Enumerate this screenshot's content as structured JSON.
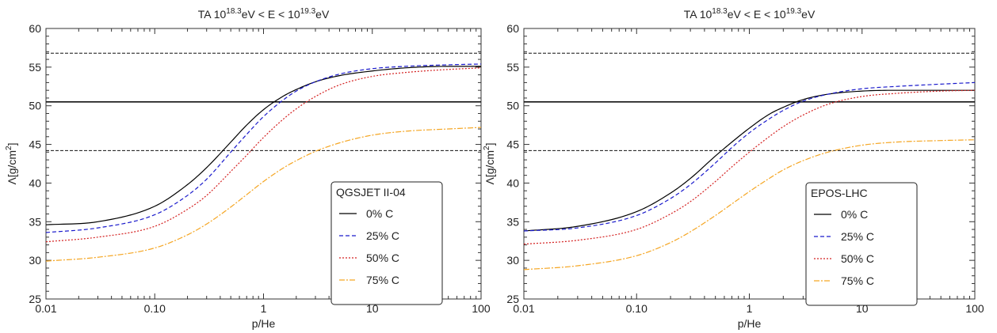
{
  "styles": {
    "0% C": {
      "color": "#000000",
      "dash": ""
    },
    "25% C": {
      "color": "#1a1acc",
      "dash": "5,3"
    },
    "50% C": {
      "color": "#d42020",
      "dash": "2,2"
    },
    "75% C": {
      "color": "#f5a623",
      "dash": "7,2,2,2"
    }
  },
  "chart_data": [
    {
      "type": "line",
      "title_text": "TA",
      "title_sup1": "18.3",
      "title_sup2": "19.3",
      "title_mid": "eV < E < 10",
      "title_end": "eV",
      "title_base": "10",
      "xlabel": "p/He",
      "ylabel_main": "Λ[g/cm",
      "ylabel_sup": "2",
      "ylabel_end": "]",
      "xscale": "log",
      "xlim": [
        0.01,
        100
      ],
      "ylim": [
        25,
        60
      ],
      "xticks": [
        {
          "v": 0.01,
          "label": "0.01"
        },
        {
          "v": 0.1,
          "label": "0.10"
        },
        {
          "v": 1,
          "label": "1"
        },
        {
          "v": 10,
          "label": "10"
        },
        {
          "v": 100,
          "label": "100"
        }
      ],
      "yticks": [
        25,
        30,
        35,
        40,
        45,
        50,
        55,
        60
      ],
      "hlines": [
        {
          "y": 50.5,
          "style": "solid"
        },
        {
          "y": 56.8,
          "style": "dashed"
        },
        {
          "y": 44.2,
          "style": "dashed"
        }
      ],
      "legend_title": "QGSJET II-04",
      "legend_position": "center-right",
      "series": [
        {
          "name": "0% C",
          "x": [
            0.01,
            0.03,
            0.1,
            0.2,
            0.3,
            0.5,
            0.7,
            1,
            1.5,
            2,
            3,
            5,
            10,
            20,
            50,
            100
          ],
          "values": [
            34.6,
            35.0,
            37.0,
            39.8,
            42.0,
            45.3,
            47.5,
            49.5,
            51.2,
            52.1,
            53.1,
            53.9,
            54.5,
            54.9,
            55.1,
            55.1
          ]
        },
        {
          "name": "25% C",
          "x": [
            0.01,
            0.03,
            0.1,
            0.2,
            0.3,
            0.5,
            0.7,
            1,
            1.5,
            2,
            3,
            5,
            10,
            20,
            50,
            100
          ],
          "values": [
            33.6,
            34.2,
            35.9,
            38.4,
            40.5,
            44.0,
            46.3,
            48.6,
            50.7,
            51.9,
            53.1,
            54.1,
            54.8,
            55.1,
            55.3,
            55.4
          ]
        },
        {
          "name": "50% C",
          "x": [
            0.01,
            0.03,
            0.1,
            0.2,
            0.3,
            0.5,
            0.7,
            1,
            1.5,
            2,
            3,
            5,
            10,
            20,
            50,
            100
          ],
          "values": [
            32.4,
            33.0,
            34.4,
            36.6,
            38.4,
            41.5,
            43.6,
            45.9,
            48.2,
            49.6,
            51.2,
            52.7,
            53.8,
            54.3,
            54.7,
            54.9
          ]
        },
        {
          "name": "75% C",
          "x": [
            0.01,
            0.03,
            0.1,
            0.2,
            0.3,
            0.5,
            0.7,
            1,
            1.5,
            2,
            3,
            5,
            10,
            20,
            50,
            100
          ],
          "values": [
            29.9,
            30.4,
            31.6,
            33.3,
            34.7,
            36.9,
            38.5,
            40.2,
            41.9,
            42.9,
            44.1,
            45.2,
            46.2,
            46.7,
            47.0,
            47.2
          ]
        }
      ]
    },
    {
      "type": "line",
      "title_text": "TA",
      "title_sup1": "18.3",
      "title_sup2": "19.3",
      "title_mid": "eV < E < 10",
      "title_end": "eV",
      "title_base": "10",
      "xlabel": "p/He",
      "ylabel_main": "Λ[g/cm",
      "ylabel_sup": "2",
      "ylabel_end": "]",
      "xscale": "log",
      "xlim": [
        0.01,
        100
      ],
      "ylim": [
        25,
        60
      ],
      "xticks": [
        {
          "v": 0.01,
          "label": "0.01"
        },
        {
          "v": 0.1,
          "label": "0.10"
        },
        {
          "v": 1,
          "label": "1"
        },
        {
          "v": 10,
          "label": "10"
        },
        {
          "v": 100,
          "label": "100"
        }
      ],
      "yticks": [
        25,
        30,
        35,
        40,
        45,
        50,
        55,
        60
      ],
      "hlines": [
        {
          "y": 50.5,
          "style": "solid"
        },
        {
          "y": 56.8,
          "style": "dashed"
        },
        {
          "y": 44.2,
          "style": "dashed"
        }
      ],
      "legend_title": "EPOS-LHC",
      "legend_position": "center-right",
      "series": [
        {
          "name": "0% C",
          "x": [
            0.01,
            0.03,
            0.1,
            0.2,
            0.3,
            0.5,
            0.7,
            1,
            1.5,
            2,
            3,
            5,
            10,
            20,
            50,
            100
          ],
          "values": [
            33.8,
            34.4,
            36.3,
            38.7,
            40.6,
            43.5,
            45.3,
            47.1,
            48.9,
            49.8,
            50.8,
            51.5,
            51.9,
            52.0,
            52.0,
            52.0
          ]
        },
        {
          "name": "25% C",
          "x": [
            0.01,
            0.03,
            0.1,
            0.2,
            0.3,
            0.5,
            0.7,
            1,
            1.5,
            2,
            3,
            5,
            10,
            20,
            50,
            100
          ],
          "values": [
            33.8,
            34.2,
            35.8,
            38.0,
            39.8,
            42.6,
            44.6,
            46.5,
            48.3,
            49.4,
            50.6,
            51.5,
            52.2,
            52.5,
            52.8,
            53.0
          ]
        },
        {
          "name": "50% C",
          "x": [
            0.01,
            0.03,
            0.1,
            0.2,
            0.3,
            0.5,
            0.7,
            1,
            1.5,
            2,
            3,
            5,
            10,
            20,
            50,
            100
          ],
          "values": [
            32.1,
            32.6,
            34.0,
            36.0,
            37.6,
            40.2,
            42.1,
            44.0,
            46.0,
            47.3,
            48.8,
            50.2,
            51.2,
            51.6,
            51.9,
            52.0
          ]
        },
        {
          "name": "75% C",
          "x": [
            0.01,
            0.03,
            0.1,
            0.2,
            0.3,
            0.5,
            0.7,
            1,
            1.5,
            2,
            3,
            5,
            10,
            20,
            50,
            100
          ],
          "values": [
            28.8,
            29.3,
            30.6,
            32.3,
            33.7,
            35.8,
            37.3,
            38.9,
            40.6,
            41.7,
            42.9,
            44.0,
            44.9,
            45.3,
            45.5,
            45.6
          ]
        }
      ]
    }
  ]
}
